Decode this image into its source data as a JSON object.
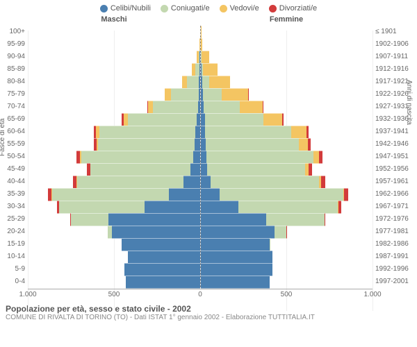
{
  "chart": {
    "type": "population-pyramid",
    "legend": [
      {
        "label": "Celibi/Nubili",
        "color": "#4a7fb0"
      },
      {
        "label": "Coniugati/e",
        "color": "#c3d8b0"
      },
      {
        "label": "Vedovi/e",
        "color": "#f4c562"
      },
      {
        "label": "Divorziati/e",
        "color": "#d23b3b"
      }
    ],
    "header_male": "Maschi",
    "header_female": "Femmine",
    "ylabel_left": "Fasce di età",
    "ylabel_right": "Anni di nascita",
    "xticks": [
      "1.000",
      "500",
      "0",
      "500",
      "1.000"
    ],
    "xmax": 1000,
    "background_color": "#ffffff",
    "grid_color": "#eeeeee",
    "axis_color": "#aaaaaa",
    "label_color": "#666666",
    "rows": [
      {
        "age": "100+",
        "birth": "≤ 1901",
        "m": {
          "c": 0,
          "co": 0,
          "v": 0,
          "d": 0
        },
        "f": {
          "c": 0,
          "co": 0,
          "v": 1,
          "d": 0
        }
      },
      {
        "age": "95-99",
        "birth": "1902-1906",
        "m": {
          "c": 0,
          "co": 0,
          "v": 1,
          "d": 0
        },
        "f": {
          "c": 0,
          "co": 0,
          "v": 10,
          "d": 0
        }
      },
      {
        "age": "90-94",
        "birth": "1907-1911",
        "m": {
          "c": 2,
          "co": 5,
          "v": 10,
          "d": 0
        },
        "f": {
          "c": 3,
          "co": 3,
          "v": 45,
          "d": 0
        }
      },
      {
        "age": "85-89",
        "birth": "1912-1916",
        "m": {
          "c": 3,
          "co": 25,
          "v": 20,
          "d": 0
        },
        "f": {
          "c": 5,
          "co": 10,
          "v": 85,
          "d": 0
        }
      },
      {
        "age": "80-84",
        "birth": "1917-1921",
        "m": {
          "c": 5,
          "co": 70,
          "v": 30,
          "d": 0
        },
        "f": {
          "c": 10,
          "co": 40,
          "v": 120,
          "d": 0
        }
      },
      {
        "age": "75-79",
        "birth": "1922-1926",
        "m": {
          "c": 8,
          "co": 160,
          "v": 35,
          "d": 2
        },
        "f": {
          "c": 15,
          "co": 110,
          "v": 150,
          "d": 2
        }
      },
      {
        "age": "70-74",
        "birth": "1927-1931",
        "m": {
          "c": 12,
          "co": 260,
          "v": 30,
          "d": 3
        },
        "f": {
          "c": 20,
          "co": 210,
          "v": 130,
          "d": 3
        }
      },
      {
        "age": "65-69",
        "birth": "1932-1936",
        "m": {
          "c": 18,
          "co": 400,
          "v": 25,
          "d": 10
        },
        "f": {
          "c": 25,
          "co": 340,
          "v": 110,
          "d": 8
        }
      },
      {
        "age": "60-64",
        "birth": "1937-1941",
        "m": {
          "c": 25,
          "co": 560,
          "v": 18,
          "d": 12
        },
        "f": {
          "c": 28,
          "co": 500,
          "v": 90,
          "d": 10
        }
      },
      {
        "age": "55-59",
        "birth": "1942-1946",
        "m": {
          "c": 30,
          "co": 560,
          "v": 12,
          "d": 15
        },
        "f": {
          "c": 30,
          "co": 540,
          "v": 55,
          "d": 15
        }
      },
      {
        "age": "50-54",
        "birth": "1947-1951",
        "m": {
          "c": 40,
          "co": 650,
          "v": 8,
          "d": 20
        },
        "f": {
          "c": 35,
          "co": 620,
          "v": 35,
          "d": 18
        }
      },
      {
        "age": "45-49",
        "birth": "1952-1956",
        "m": {
          "c": 55,
          "co": 580,
          "v": 3,
          "d": 18
        },
        "f": {
          "c": 40,
          "co": 570,
          "v": 18,
          "d": 20
        }
      },
      {
        "age": "40-44",
        "birth": "1957-1961",
        "m": {
          "c": 95,
          "co": 620,
          "v": 2,
          "d": 22
        },
        "f": {
          "c": 60,
          "co": 630,
          "v": 10,
          "d": 25
        }
      },
      {
        "age": "35-39",
        "birth": "1962-1966",
        "m": {
          "c": 180,
          "co": 680,
          "v": 1,
          "d": 20
        },
        "f": {
          "c": 110,
          "co": 720,
          "v": 5,
          "d": 25
        }
      },
      {
        "age": "30-34",
        "birth": "1967-1971",
        "m": {
          "c": 320,
          "co": 500,
          "v": 0,
          "d": 12
        },
        "f": {
          "c": 220,
          "co": 580,
          "v": 2,
          "d": 15
        }
      },
      {
        "age": "25-29",
        "birth": "1972-1976",
        "m": {
          "c": 530,
          "co": 220,
          "v": 0,
          "d": 3
        },
        "f": {
          "c": 380,
          "co": 340,
          "v": 0,
          "d": 5
        }
      },
      {
        "age": "20-24",
        "birth": "1977-1981",
        "m": {
          "c": 510,
          "co": 25,
          "v": 0,
          "d": 0
        },
        "f": {
          "c": 430,
          "co": 70,
          "v": 0,
          "d": 1
        }
      },
      {
        "age": "15-19",
        "birth": "1982-1986",
        "m": {
          "c": 455,
          "co": 0,
          "v": 0,
          "d": 0
        },
        "f": {
          "c": 400,
          "co": 2,
          "v": 0,
          "d": 0
        }
      },
      {
        "age": "10-14",
        "birth": "1987-1991",
        "m": {
          "c": 420,
          "co": 0,
          "v": 0,
          "d": 0
        },
        "f": {
          "c": 420,
          "co": 0,
          "v": 0,
          "d": 0
        }
      },
      {
        "age": "5-9",
        "birth": "1992-1996",
        "m": {
          "c": 440,
          "co": 0,
          "v": 0,
          "d": 0
        },
        "f": {
          "c": 420,
          "co": 0,
          "v": 0,
          "d": 0
        }
      },
      {
        "age": "0-4",
        "birth": "1997-2001",
        "m": {
          "c": 430,
          "co": 0,
          "v": 0,
          "d": 0
        },
        "f": {
          "c": 400,
          "co": 0,
          "v": 0,
          "d": 0
        }
      }
    ]
  },
  "footer": {
    "title": "Popolazione per età, sesso e stato civile - 2002",
    "subtitle": "COMUNE DI RIVALTA DI TORINO (TO) - Dati ISTAT 1° gennaio 2002 - Elaborazione TUTTITALIA.IT"
  }
}
